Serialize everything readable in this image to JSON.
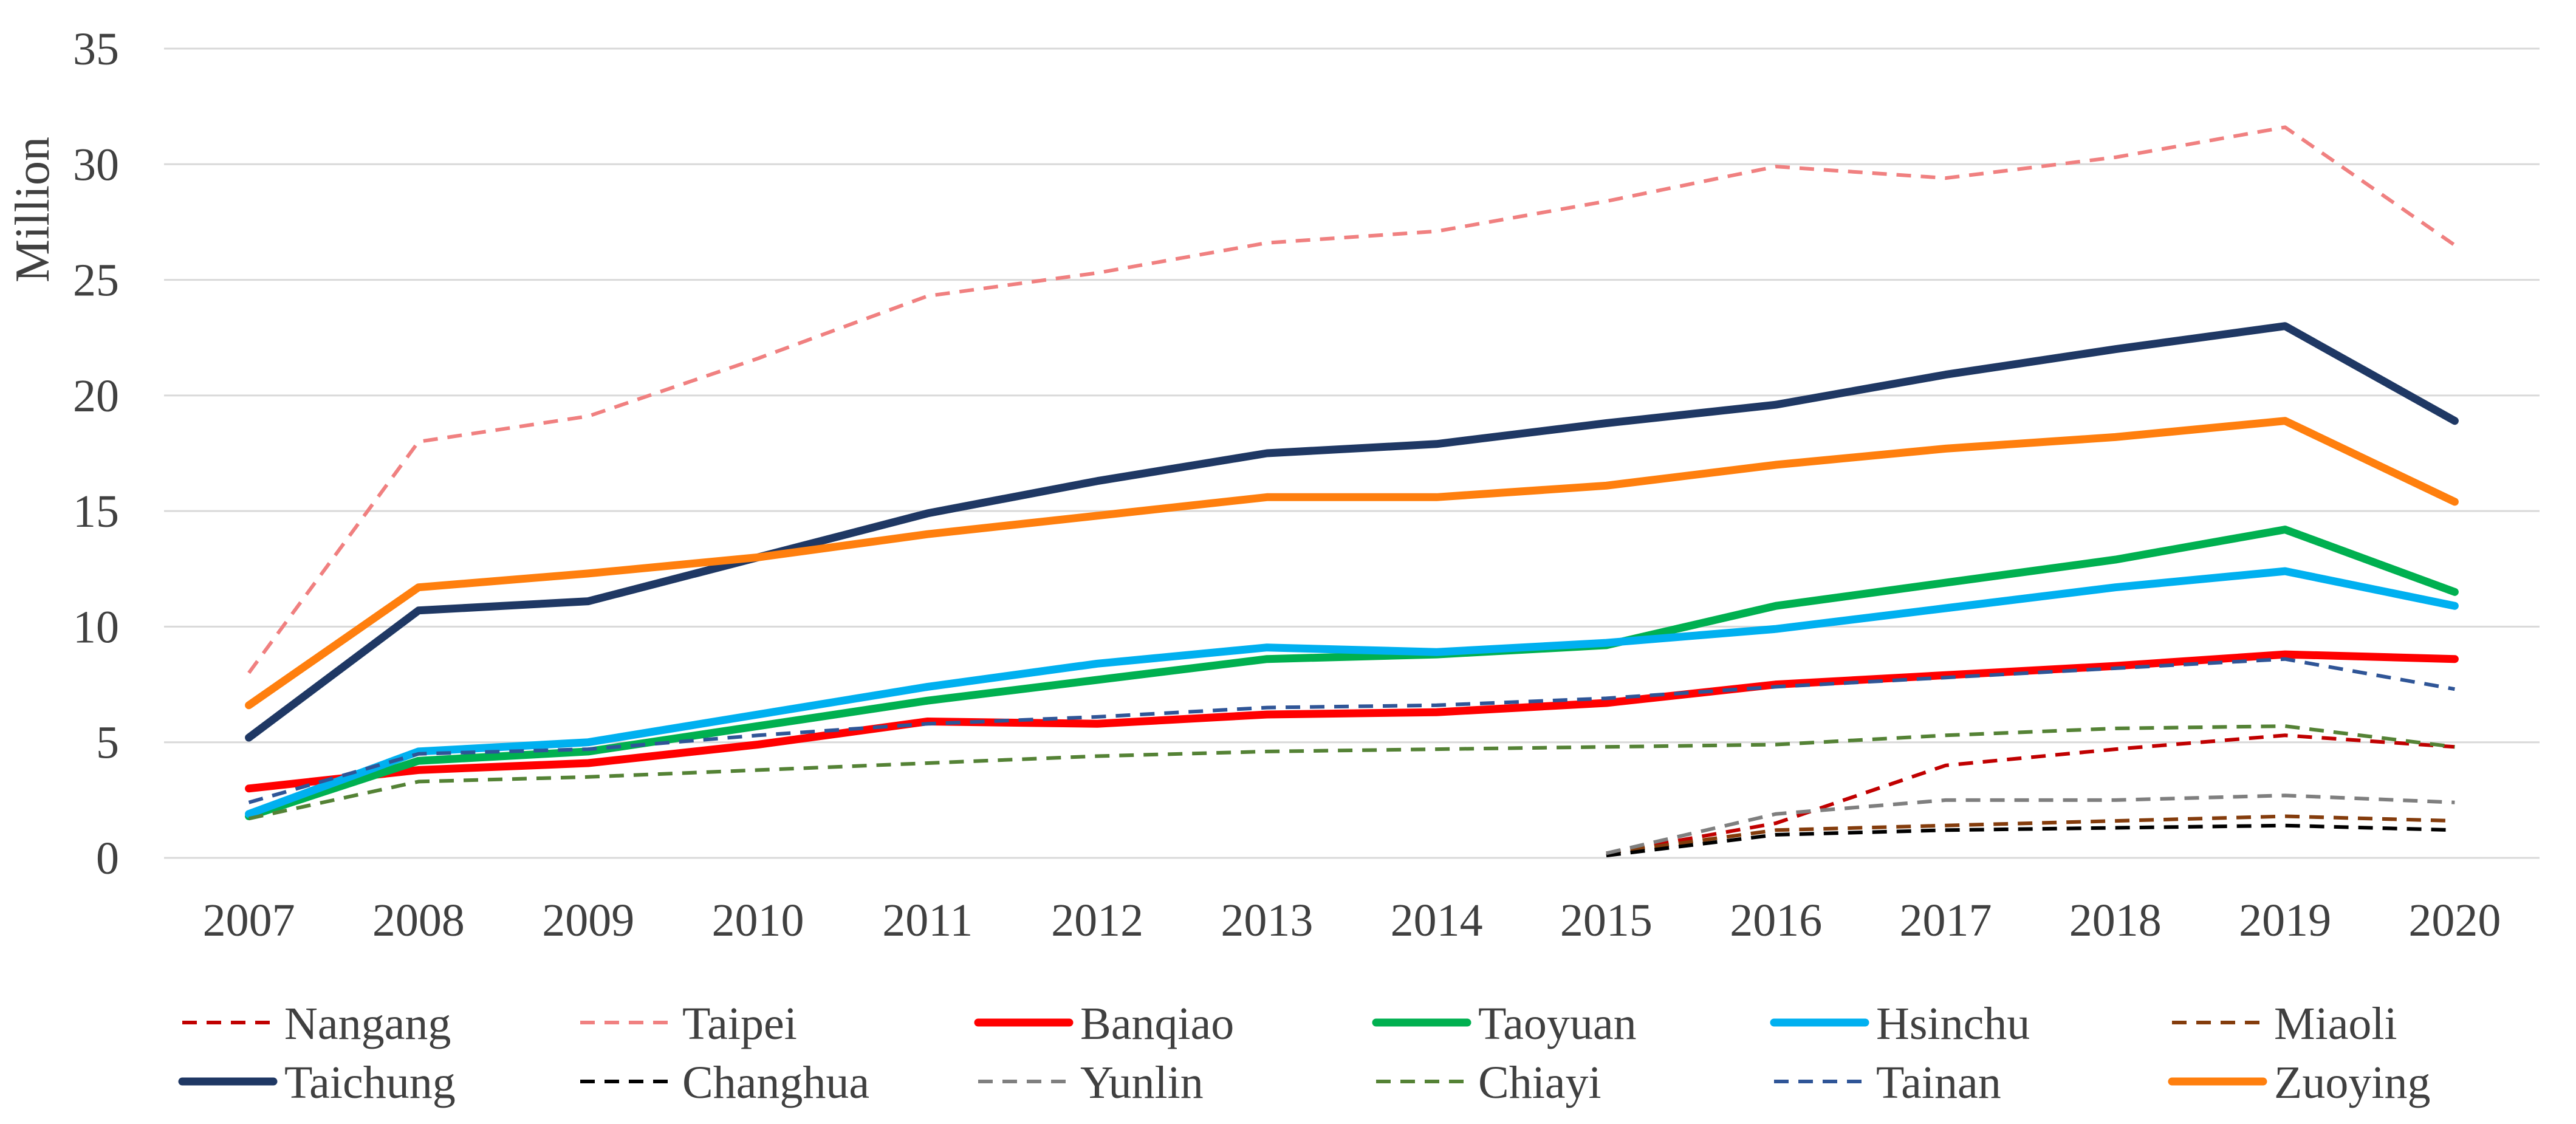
{
  "chart_data": {
    "type": "line",
    "title": "",
    "xlabel": "",
    "ylabel": "Million",
    "ylim": [
      0,
      35
    ],
    "yticks": [
      0,
      5,
      10,
      15,
      20,
      25,
      30,
      35
    ],
    "ytick_labels": [
      "0",
      "5",
      "10",
      "15",
      "20",
      "25",
      "30",
      "35"
    ],
    "grid": true,
    "legend_position": "bottom",
    "categories": [
      "2007",
      "2008",
      "2009",
      "2010",
      "2011",
      "2012",
      "2013",
      "2014",
      "2015",
      "2016",
      "2017",
      "2018",
      "2019",
      "2020"
    ],
    "series": [
      {
        "name": "Nangang",
        "color": "#c00000",
        "style": "dashed",
        "values": [
          null,
          null,
          null,
          null,
          null,
          null,
          null,
          null,
          0.2,
          1.5,
          4.0,
          4.7,
          5.3,
          4.8
        ]
      },
      {
        "name": "Taipei",
        "color": "#f08080",
        "style": "dashed",
        "values": [
          8.0,
          18.0,
          19.1,
          21.6,
          24.3,
          25.3,
          26.6,
          27.1,
          28.4,
          29.9,
          29.4,
          30.3,
          31.6,
          26.5
        ]
      },
      {
        "name": "Banqiao",
        "color": "#ff0000",
        "style": "solid",
        "values": [
          3.0,
          3.8,
          4.1,
          4.9,
          5.9,
          5.8,
          6.2,
          6.3,
          6.7,
          7.5,
          7.9,
          8.3,
          8.8,
          8.6
        ]
      },
      {
        "name": "Taoyuan",
        "color": "#00b050",
        "style": "solid",
        "values": [
          1.8,
          4.2,
          4.6,
          5.7,
          6.8,
          7.7,
          8.6,
          8.8,
          9.2,
          10.9,
          11.9,
          12.9,
          14.2,
          11.5
        ]
      },
      {
        "name": "Hsinchu",
        "color": "#00b0f0",
        "style": "solid",
        "values": [
          1.9,
          4.6,
          5.0,
          6.2,
          7.4,
          8.4,
          9.1,
          8.9,
          9.3,
          9.9,
          10.8,
          11.7,
          12.4,
          10.9
        ]
      },
      {
        "name": "Miaoli",
        "color": "#843c0c",
        "style": "dashed",
        "values": [
          null,
          null,
          null,
          null,
          null,
          null,
          null,
          null,
          0.2,
          1.2,
          1.4,
          1.6,
          1.8,
          1.6
        ]
      },
      {
        "name": "Taichung",
        "color": "#1f3864",
        "style": "solid",
        "values": [
          5.2,
          10.7,
          11.1,
          13.0,
          14.9,
          16.3,
          17.5,
          17.9,
          18.8,
          19.6,
          20.9,
          22.0,
          23.0,
          18.9
        ]
      },
      {
        "name": "Changhua",
        "color": "#000000",
        "style": "dashed",
        "values": [
          null,
          null,
          null,
          null,
          null,
          null,
          null,
          null,
          0.1,
          1.0,
          1.2,
          1.3,
          1.4,
          1.2
        ]
      },
      {
        "name": "Yunlin",
        "color": "#7f7f7f",
        "style": "dashed",
        "values": [
          null,
          null,
          null,
          null,
          null,
          null,
          null,
          null,
          0.2,
          1.9,
          2.5,
          2.5,
          2.7,
          2.4
        ]
      },
      {
        "name": "Chiayi",
        "color": "#548235",
        "style": "dashed",
        "values": [
          1.7,
          3.3,
          3.5,
          3.8,
          4.1,
          4.4,
          4.6,
          4.7,
          4.8,
          4.9,
          5.3,
          5.6,
          5.7,
          4.8
        ]
      },
      {
        "name": "Tainan",
        "color": "#2f5597",
        "style": "dashed",
        "values": [
          2.4,
          4.5,
          4.7,
          5.3,
          5.8,
          6.1,
          6.5,
          6.6,
          6.9,
          7.4,
          7.8,
          8.2,
          8.6,
          7.3
        ]
      },
      {
        "name": "Zuoying",
        "color": "#ff7f0e",
        "style": "solid",
        "values": [
          6.6,
          11.7,
          12.3,
          13.0,
          14.0,
          14.8,
          15.6,
          15.6,
          16.1,
          17.0,
          17.7,
          18.2,
          18.9,
          15.4
        ]
      }
    ]
  }
}
